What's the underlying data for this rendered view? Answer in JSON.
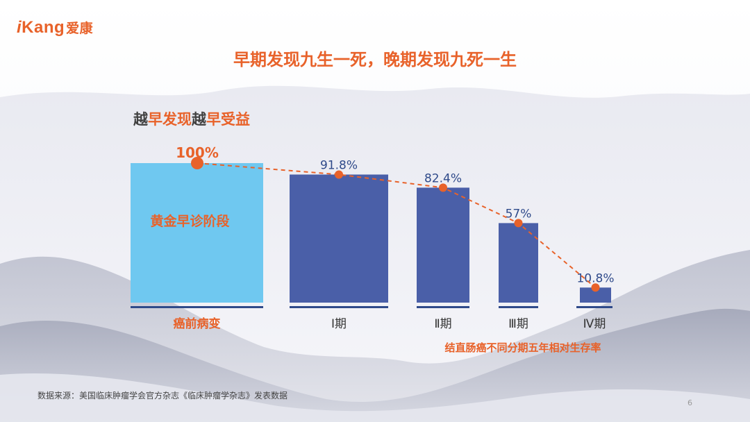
{
  "logo": {
    "i": "i",
    "kang": "Kang",
    "cn": "爱康"
  },
  "title": "早期发现九生一死，晚期发现九死一生",
  "subtitle": {
    "p1": "越",
    "p2": "早发现",
    "p3": "越",
    "p4": "早受益"
  },
  "footnote": "数据来源：美国临床肿瘤学会官方杂志《临床肿瘤学杂志》发表数据",
  "page_number": "6",
  "colors": {
    "accent": "#e8622a",
    "bar_main": "#4a5fa8",
    "bar_highlight": "#6fc8f0",
    "label_blue": "#2f4a8a",
    "baseline": "#2f4a8a"
  },
  "chart_data": {
    "type": "bar",
    "categories": [
      "癌前病变",
      "Ⅰ期",
      "Ⅱ期",
      "Ⅲ期",
      "Ⅳ期"
    ],
    "values": [
      100,
      91.8,
      82.4,
      57,
      10.8
    ],
    "data_labels": [
      "100%",
      "91.8%",
      "82.4%",
      "57%",
      "10.8%"
    ],
    "highlight_bar": {
      "index": 0,
      "label": "黄金早诊阶段"
    },
    "trend_line": "dashed orange line through bar tops",
    "annotation": "结直肠癌不同分期五年相对生存率",
    "ylim": [
      0,
      100
    ]
  }
}
